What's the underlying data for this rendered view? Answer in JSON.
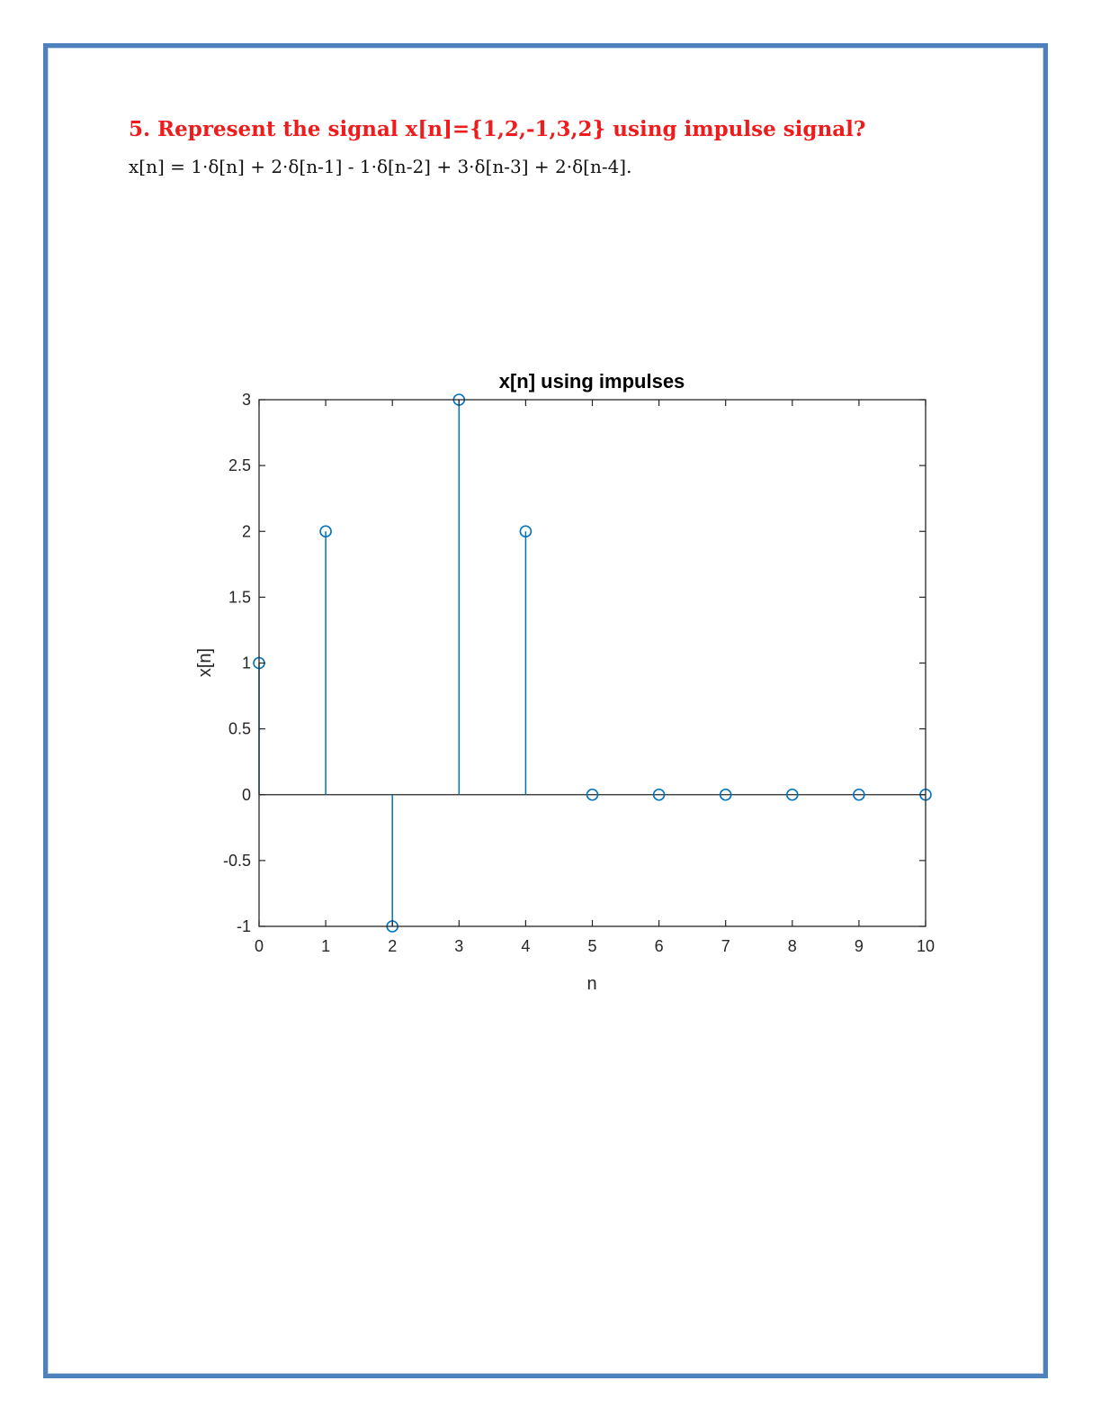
{
  "heading": "5. Represent the signal x[n]={1,2,-1,3,2} using impulse signal?",
  "equation": "x[n] = 1·δ[n] + 2·δ[n-1] - 1·δ[n-2] + 3·δ[n-3] + 2·δ[n-4].",
  "colors": {
    "border": "#4f81bd",
    "heading": "#ee1c1c",
    "stem": "#0072bd"
  },
  "chart_data": {
    "type": "stem",
    "title": "x[n] using impulses",
    "xlabel": "n",
    "ylabel": "x[n]",
    "xlim": [
      0,
      10
    ],
    "ylim": [
      -1,
      3
    ],
    "xticks": [
      "0",
      "1",
      "2",
      "3",
      "4",
      "5",
      "6",
      "7",
      "8",
      "9",
      "10"
    ],
    "yticks": [
      "-1",
      "-0.5",
      "0",
      "0.5",
      "1",
      "1.5",
      "2",
      "2.5",
      "3"
    ],
    "x": [
      0,
      1,
      2,
      3,
      4,
      5,
      6,
      7,
      8,
      9,
      10
    ],
    "values": [
      1,
      2,
      -1,
      3,
      2,
      0,
      0,
      0,
      0,
      0,
      0
    ],
    "grid": false,
    "marker": "circle"
  }
}
